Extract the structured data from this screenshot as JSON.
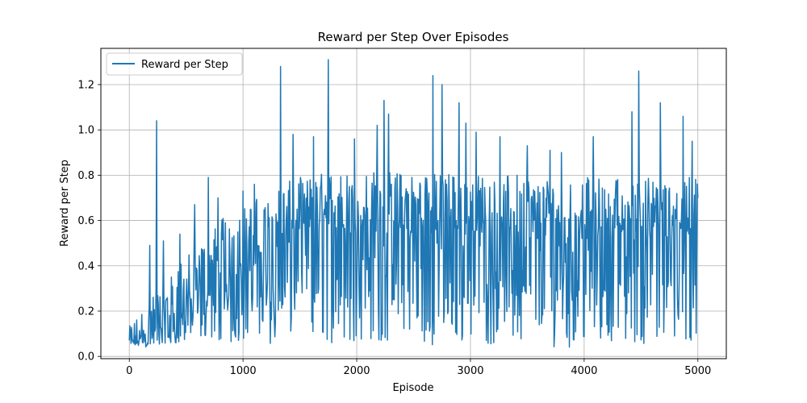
{
  "chart_data": {
    "type": "line",
    "title": "Reward per Step Over Episodes",
    "xlabel": "Episode",
    "ylabel": "Reward per Step",
    "xlim": [
      -250,
      5250
    ],
    "ylim": [
      -0.01,
      1.36
    ],
    "xticks": [
      0,
      1000,
      2000,
      3000,
      4000,
      5000
    ],
    "yticks": [
      0.0,
      0.2,
      0.4,
      0.6,
      0.8,
      1.0,
      1.2
    ],
    "xtick_labels": [
      "0",
      "1000",
      "2000",
      "3000",
      "4000",
      "5000"
    ],
    "ytick_labels": [
      "0.0",
      "0.2",
      "0.4",
      "0.6",
      "0.8",
      "1.0",
      "1.2"
    ],
    "grid": true,
    "legend_position": "top-left",
    "color": "#1f77b4",
    "series": [
      {
        "name": "Reward per Step",
        "x": [
          0,
          100,
          200,
          300,
          400,
          500,
          600,
          700,
          800,
          900,
          1000,
          1100,
          1200,
          1300,
          1400,
          1500,
          1600,
          1700,
          1800,
          1900,
          2000,
          2200,
          2400,
          2600,
          2800,
          3000,
          3200,
          3400,
          3600,
          3800,
          4000,
          4200,
          4400,
          4600,
          4800,
          5000
        ],
        "low": [
          0.04,
          0.04,
          0.04,
          0.04,
          0.05,
          0.05,
          0.06,
          0.05,
          0.06,
          0.06,
          0.07,
          0.07,
          0.06,
          0.05,
          0.06,
          0.07,
          0.06,
          0.06,
          0.06,
          0.05,
          0.07,
          0.06,
          0.05,
          0.05,
          0.05,
          0.05,
          0.05,
          0.04,
          0.04,
          0.04,
          0.04,
          0.05,
          0.04,
          0.05,
          0.05,
          0.06
        ],
        "mid": [
          0.07,
          0.09,
          0.12,
          0.15,
          0.18,
          0.24,
          0.3,
          0.33,
          0.36,
          0.4,
          0.44,
          0.48,
          0.52,
          0.55,
          0.58,
          0.6,
          0.62,
          0.63,
          0.64,
          0.64,
          0.63,
          0.63,
          0.63,
          0.62,
          0.62,
          0.62,
          0.62,
          0.61,
          0.6,
          0.6,
          0.6,
          0.6,
          0.59,
          0.6,
          0.6,
          0.6
        ],
        "high": [
          0.14,
          0.22,
          0.3,
          0.35,
          0.4,
          0.48,
          0.56,
          0.6,
          0.64,
          0.68,
          0.7,
          0.73,
          0.76,
          0.78,
          0.8,
          0.82,
          0.83,
          0.84,
          0.85,
          0.85,
          0.85,
          0.85,
          0.84,
          0.84,
          0.84,
          0.84,
          0.83,
          0.83,
          0.83,
          0.82,
          0.82,
          0.82,
          0.82,
          0.82,
          0.82,
          0.82
        ],
        "spikes": [
          {
            "x": 240,
            "y": 1.04
          },
          {
            "x": 180,
            "y": 0.49
          },
          {
            "x": 300,
            "y": 0.51
          },
          {
            "x": 445,
            "y": 0.54
          },
          {
            "x": 575,
            "y": 0.67
          },
          {
            "x": 695,
            "y": 0.79
          },
          {
            "x": 780,
            "y": 0.7
          },
          {
            "x": 1000,
            "y": 0.73
          },
          {
            "x": 1100,
            "y": 0.76
          },
          {
            "x": 1330,
            "y": 1.28
          },
          {
            "x": 1440,
            "y": 0.98
          },
          {
            "x": 1620,
            "y": 0.97
          },
          {
            "x": 1750,
            "y": 1.31
          },
          {
            "x": 1980,
            "y": 0.96
          },
          {
            "x": 2180,
            "y": 1.02
          },
          {
            "x": 2240,
            "y": 1.13
          },
          {
            "x": 2280,
            "y": 1.07
          },
          {
            "x": 2670,
            "y": 1.24
          },
          {
            "x": 2750,
            "y": 1.2
          },
          {
            "x": 2900,
            "y": 1.12
          },
          {
            "x": 2960,
            "y": 1.03
          },
          {
            "x": 3050,
            "y": 0.99
          },
          {
            "x": 3260,
            "y": 0.97
          },
          {
            "x": 3500,
            "y": 0.93
          },
          {
            "x": 3700,
            "y": 0.91
          },
          {
            "x": 3800,
            "y": 0.9
          },
          {
            "x": 4080,
            "y": 0.97
          },
          {
            "x": 4420,
            "y": 1.08
          },
          {
            "x": 4480,
            "y": 1.26
          },
          {
            "x": 4670,
            "y": 1.12
          },
          {
            "x": 4870,
            "y": 1.06
          },
          {
            "x": 4950,
            "y": 0.95
          }
        ]
      }
    ]
  }
}
